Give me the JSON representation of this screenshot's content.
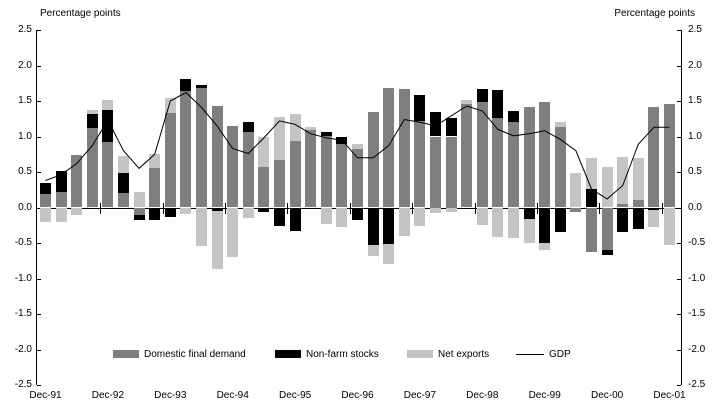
{
  "titles": {
    "left": "Percentage points",
    "right": "Percentage points"
  },
  "legend": [
    {
      "label": "Domestic final demand",
      "type": "swatch",
      "color": "#7f7f7f"
    },
    {
      "label": "Non-farm stocks",
      "type": "swatch",
      "color": "#000000"
    },
    {
      "label": "Net exports",
      "type": "swatch",
      "color": "#c4c4c4"
    },
    {
      "label": "GDP",
      "type": "line",
      "color": "#000000"
    }
  ],
  "chart_data": {
    "type": "bar",
    "stacked": true,
    "title": "",
    "ylabel_left": "Percentage points",
    "ylabel_right": "Percentage points",
    "ylim": [
      -2.5,
      2.5
    ],
    "ytick_step": 0.5,
    "grid": false,
    "legend_position": "bottom-center",
    "categories": [
      "Dec-91",
      "Mar-92",
      "Jun-92",
      "Sep-92",
      "Dec-92",
      "Mar-93",
      "Jun-93",
      "Sep-93",
      "Dec-93",
      "Mar-94",
      "Jun-94",
      "Sep-94",
      "Dec-94",
      "Mar-95",
      "Jun-95",
      "Sep-95",
      "Dec-95",
      "Mar-96",
      "Jun-96",
      "Sep-96",
      "Dec-96",
      "Mar-97",
      "Jun-97",
      "Sep-97",
      "Dec-97",
      "Mar-98",
      "Jun-98",
      "Sep-98",
      "Dec-98",
      "Mar-99",
      "Jun-99",
      "Sep-99",
      "Dec-99",
      "Mar-00",
      "Jun-00",
      "Sep-00",
      "Dec-00",
      "Mar-01",
      "Jun-01",
      "Sep-01",
      "Dec-01"
    ],
    "x_tick_labels": [
      "Dec-91",
      "Dec-92",
      "Dec-93",
      "Dec-94",
      "Dec-95",
      "Dec-96",
      "Dec-97",
      "Dec-98",
      "Dec-99",
      "Dec-00",
      "Dec-01"
    ],
    "series": [
      {
        "name": "Domestic final demand",
        "color": "#7f7f7f",
        "values": [
          0.19,
          0.22,
          0.74,
          1.12,
          0.92,
          0.2,
          -0.1,
          0.56,
          1.33,
          1.64,
          1.68,
          1.43,
          1.15,
          1.06,
          0.57,
          0.67,
          0.93,
          1.09,
          1.01,
          0.89,
          0.83,
          1.34,
          1.69,
          1.67,
          1.22,
          1.0,
          1.0,
          1.46,
          1.48,
          1.26,
          1.2,
          1.42,
          1.48,
          1.13,
          -0.07,
          -0.62,
          -0.6,
          0.05,
          0.1,
          1.42,
          1.46
        ]
      },
      {
        "name": "Non-farm stocks",
        "color": "#000000",
        "values": [
          0.15,
          0.3,
          0.0,
          0.19,
          0.46,
          0.29,
          -0.08,
          -0.17,
          -0.13,
          0.17,
          0.04,
          -0.05,
          0.0,
          0.14,
          -0.07,
          -0.26,
          -0.33,
          0.0,
          0.05,
          0.1,
          -0.18,
          -0.53,
          -0.52,
          0.0,
          0.36,
          0.34,
          0.26,
          0.0,
          0.19,
          0.39,
          0.16,
          -0.16,
          -0.5,
          -0.34,
          0.0,
          0.26,
          -0.07,
          -0.35,
          -0.3,
          -0.04,
          0.0
        ]
      },
      {
        "name": "Net exports",
        "color": "#c4c4c4",
        "values": [
          -0.2,
          -0.21,
          -0.1,
          0.06,
          0.14,
          0.23,
          0.22,
          0.2,
          0.21,
          -0.09,
          -0.54,
          -0.81,
          -0.7,
          -0.15,
          0.42,
          0.61,
          0.39,
          0.05,
          -0.23,
          -0.27,
          0.07,
          -0.15,
          -0.28,
          -0.4,
          -0.26,
          -0.08,
          -0.07,
          0.05,
          -0.25,
          -0.41,
          -0.43,
          -0.34,
          -0.1,
          0.08,
          0.49,
          0.44,
          0.57,
          0.66,
          0.6,
          -0.24,
          -0.53
        ]
      }
    ],
    "line_series": {
      "name": "GDP",
      "color": "#000000",
      "values": [
        0.38,
        0.46,
        0.62,
        0.87,
        1.23,
        0.8,
        0.55,
        0.75,
        1.5,
        1.62,
        1.41,
        1.15,
        0.83,
        0.76,
        0.98,
        1.22,
        1.17,
        1.04,
        0.98,
        0.95,
        0.7,
        0.7,
        0.87,
        1.24,
        1.2,
        1.15,
        1.29,
        1.43,
        1.36,
        1.1,
        1.01,
        1.04,
        1.08,
        0.96,
        0.8,
        0.26,
        0.12,
        0.31,
        0.89,
        1.13,
        1.13
      ]
    }
  }
}
